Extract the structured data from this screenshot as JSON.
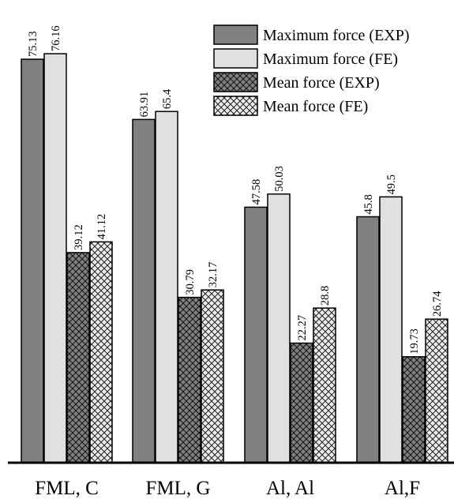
{
  "chart_data": {
    "type": "bar",
    "categories": [
      "FML, C",
      "FML, G",
      "Al, Al",
      "Al,F"
    ],
    "series": [
      {
        "name": "Maximum force (EXP)",
        "values": [
          75.13,
          63.91,
          47.58,
          45.8
        ],
        "labels": [
          "75.13",
          "63.91",
          "47.58",
          "45.8"
        ],
        "color": "#808080",
        "pattern": "solid"
      },
      {
        "name": "Maximum force (FE)",
        "values": [
          76.16,
          65.4,
          50.03,
          49.5
        ],
        "labels": [
          "76.16",
          "65.4",
          "50.03",
          "49.5"
        ],
        "color": "#e0e0e0",
        "pattern": "solid"
      },
      {
        "name": "Mean force (EXP)",
        "values": [
          39.12,
          30.79,
          22.27,
          19.73
        ],
        "labels": [
          "39.12",
          "30.79",
          "22.27",
          "19.73"
        ],
        "color": "#808080",
        "pattern": "crosshatch"
      },
      {
        "name": "Mean force (FE)",
        "values": [
          41.12,
          32.17,
          28.8,
          26.74
        ],
        "labels": [
          "41.12",
          "32.17",
          "28.8",
          "26.74"
        ],
        "color": "#e0e0e0",
        "pattern": "crosshatch"
      }
    ],
    "ylim": [
      0,
      80
    ],
    "grid": false,
    "legend_position": "top-right",
    "title": "",
    "xlabel": "",
    "ylabel": ""
  }
}
